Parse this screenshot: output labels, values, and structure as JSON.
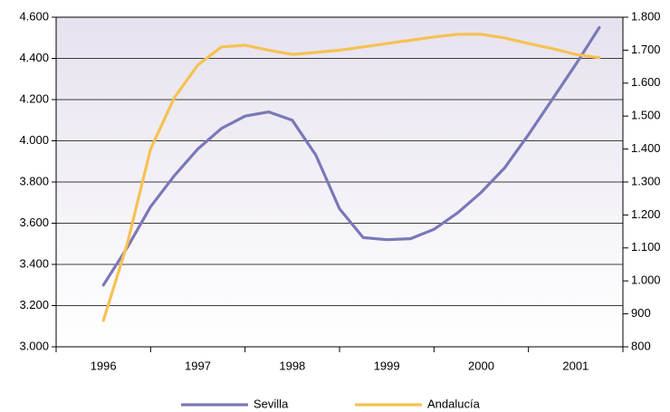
{
  "chart_data": {
    "type": "line",
    "categories": [
      "1996",
      null,
      null,
      null,
      "1997",
      null,
      null,
      null,
      "1998",
      null,
      null,
      null,
      "1999",
      null,
      null,
      null,
      "2000",
      null,
      null,
      null,
      "2001",
      null
    ],
    "series": [
      {
        "name": "Sevilla",
        "color": "#7b78b8",
        "axis": "y",
        "values": [
          3300,
          3480,
          3680,
          3830,
          3960,
          4060,
          4120,
          4140,
          4100,
          3930,
          3670,
          3530,
          3520,
          3525,
          3570,
          3650,
          3750,
          3870,
          4030,
          4200,
          4370,
          4550
        ]
      },
      {
        "name": "Andalucía",
        "color": "#f5c252",
        "axis": "y2",
        "values": [
          880,
          1110,
          1400,
          1555,
          1655,
          1710,
          1715,
          1700,
          1687,
          1693,
          1700,
          1710,
          1720,
          1730,
          1740,
          1748,
          1748,
          1737,
          1720,
          1705,
          1687,
          1677
        ]
      }
    ],
    "ylim": [
      3000,
      4600
    ],
    "yticks": [
      {
        "value": 3000,
        "label": "3.000"
      },
      {
        "value": 3200,
        "label": "3.200"
      },
      {
        "value": 3400,
        "label": "3.400"
      },
      {
        "value": 3600,
        "label": "3.600"
      },
      {
        "value": 3800,
        "label": "3.800"
      },
      {
        "value": 4000,
        "label": "4.000"
      },
      {
        "value": 4200,
        "label": "4.200"
      },
      {
        "value": 4400,
        "label": "4.400"
      },
      {
        "value": 4600,
        "label": "4.600"
      }
    ],
    "y2lim": [
      800,
      1800
    ],
    "y2ticks": [
      800,
      900,
      {
        "value": 1000,
        "label": "1.000"
      },
      {
        "value": 1100,
        "label": "1.100"
      },
      {
        "value": 1200,
        "label": "1.200"
      },
      {
        "value": 1300,
        "label": "1.300"
      },
      {
        "value": 1400,
        "label": "1.400"
      },
      {
        "value": 1500,
        "label": "1.500"
      },
      {
        "value": 1600,
        "label": "1.600"
      },
      {
        "value": 1700,
        "label": "1.700"
      },
      {
        "value": 1800,
        "label": "1.800"
      }
    ],
    "grid": true,
    "legend": "bottom"
  }
}
